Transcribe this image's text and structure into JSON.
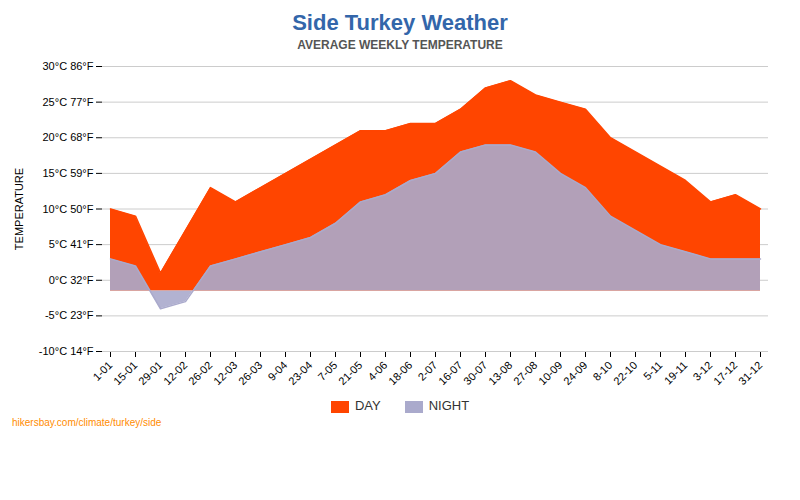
{
  "chart_data": {
    "type": "area",
    "title": "Side Turkey Weather",
    "subtitle": "AVERAGE WEEKLY TEMPERATURE",
    "ylabel": "TEMPERATURE",
    "caption": "hikersbay.com/climate/turkey/side",
    "categories": [
      "1-01",
      "15-01",
      "29-01",
      "12-02",
      "26-02",
      "12-03",
      "26-03",
      "9-04",
      "23-04",
      "7-05",
      "21-05",
      "4-06",
      "18-06",
      "2-07",
      "16-07",
      "30-07",
      "13-08",
      "27-08",
      "10-09",
      "24-09",
      "8-10",
      "22-10",
      "5-11",
      "19-11",
      "3-12",
      "17-12",
      "31-12"
    ],
    "baseline": -1.5,
    "series": [
      {
        "name": "DAY",
        "color": "#ff4500",
        "values": [
          10,
          9,
          1,
          7,
          13,
          11,
          13,
          15,
          17,
          19,
          21,
          21,
          22,
          22,
          24,
          27,
          28,
          26,
          25,
          24,
          20,
          18,
          16,
          14,
          11,
          12,
          10
        ]
      },
      {
        "name": "NIGHT",
        "color": "#aaaacc",
        "values": [
          3,
          2,
          -4,
          -3,
          2,
          3,
          4,
          5,
          6,
          8,
          11,
          12,
          14,
          15,
          18,
          19,
          19,
          18,
          15,
          13,
          9,
          7,
          5,
          4,
          3,
          3,
          3
        ]
      }
    ],
    "ylim": [
      -10,
      30
    ],
    "yticks": [
      {
        "value": -10,
        "label": "-10°C 14°F"
      },
      {
        "value": -5,
        "label": "-5°C 23°F"
      },
      {
        "value": 0,
        "label": "0°C 32°F"
      },
      {
        "value": 5,
        "label": "5°C 41°F"
      },
      {
        "value": 10,
        "label": "10°C 50°F"
      },
      {
        "value": 15,
        "label": "15°C 59°F"
      },
      {
        "value": 20,
        "label": "20°C 68°F"
      },
      {
        "value": 25,
        "label": "25°C 77°F"
      },
      {
        "value": 30,
        "label": "30°C 86°F"
      }
    ],
    "grid": true
  }
}
